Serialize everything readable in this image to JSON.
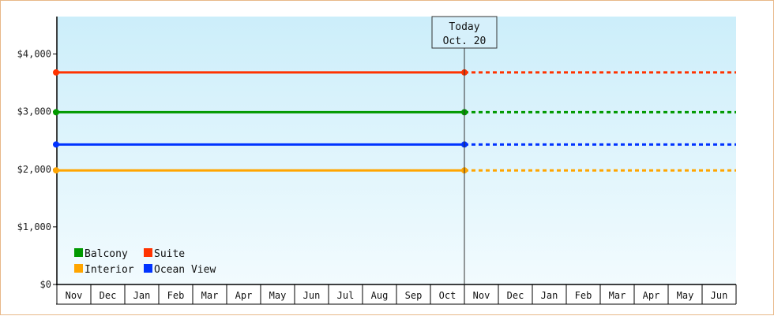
{
  "chart_data": {
    "type": "line",
    "title": "",
    "xlabel": "",
    "ylabel": "",
    "ylim": [
      0,
      4650
    ],
    "y_ticks": [
      "$0",
      "$1,000",
      "$2,000",
      "$3,000",
      "$4,000"
    ],
    "y_tick_values": [
      0,
      1000,
      2000,
      3000,
      4000
    ],
    "x": [
      "Nov",
      "Dec",
      "Jan",
      "Feb",
      "Mar",
      "Apr",
      "May",
      "Jun",
      "Jul",
      "Aug",
      "Sep",
      "Oct",
      "Nov",
      "Dec",
      "Jan",
      "Feb",
      "Mar",
      "Apr",
      "May",
      "Jun"
    ],
    "today": {
      "line1": "Today",
      "line2": "Oct. 20",
      "index": 11
    },
    "series": [
      {
        "name": "Suite",
        "color": "#ff3300",
        "value": 3680
      },
      {
        "name": "Balcony",
        "color": "#009900",
        "value": 2990
      },
      {
        "name": "Ocean View",
        "color": "#0033ff",
        "value": 2430
      },
      {
        "name": "Interior",
        "color": "#ffa500",
        "value": 1980
      }
    ],
    "legend": [
      [
        "Balcony",
        "Suite"
      ],
      [
        "Interior",
        "Ocean View"
      ]
    ],
    "legend_position": "bottom-left",
    "background_gradient": [
      "#cceefa",
      "#f2fbfe"
    ],
    "grid": false
  }
}
